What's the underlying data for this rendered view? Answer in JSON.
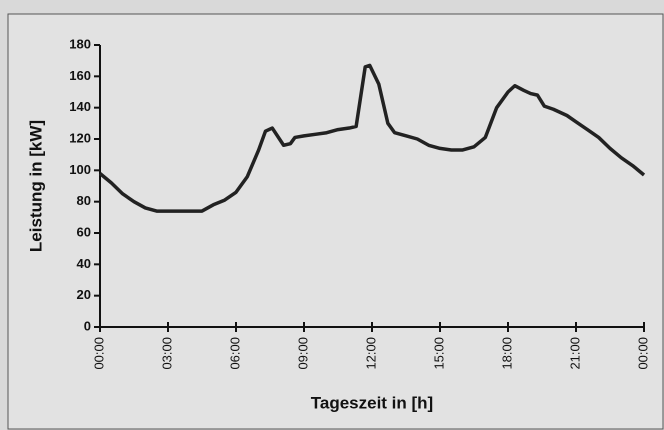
{
  "chart_data": {
    "type": "line",
    "xlabel": "Tageszeit in [h]",
    "ylabel": "Leistung in [kW]",
    "x": [
      0,
      0.5,
      1,
      1.5,
      2,
      2.5,
      3,
      3.5,
      4,
      4.5,
      5,
      5.5,
      6,
      6.5,
      7,
      7.3,
      7.6,
      8.1,
      8.4,
      8.6,
      9,
      9.5,
      10,
      10.5,
      11,
      11.3,
      11.7,
      11.9,
      12.3,
      12.7,
      13,
      13.5,
      14,
      14.5,
      15,
      15.5,
      16,
      16.5,
      17,
      17.5,
      18,
      18.3,
      18.7,
      19,
      19.3,
      19.6,
      20,
      20.6,
      21,
      21.5,
      22,
      22.5,
      23,
      23.5,
      24
    ],
    "values": [
      98,
      92,
      85,
      80,
      76,
      74,
      74,
      74,
      74,
      74,
      78,
      81,
      86,
      96,
      113,
      125,
      127,
      116,
      117,
      121,
      122,
      123,
      124,
      126,
      127,
      128,
      166,
      167,
      155,
      130,
      124,
      122,
      120,
      116,
      114,
      113,
      113,
      115,
      121,
      140,
      150,
      154,
      151,
      149,
      148,
      141,
      139,
      135,
      131,
      126,
      121,
      114,
      108,
      103,
      97
    ],
    "color": "#222222",
    "xlim": [
      0,
      24
    ],
    "xticks": [
      {
        "value": 0,
        "label": "00:00"
      },
      {
        "value": 3,
        "label": "03:00"
      },
      {
        "value": 6,
        "label": "06:00"
      },
      {
        "value": 9,
        "label": "09:00"
      },
      {
        "value": 12,
        "label": "12:00"
      },
      {
        "value": 15,
        "label": "15:00"
      },
      {
        "value": 18,
        "label": "18:00"
      },
      {
        "value": 21,
        "label": "21:00"
      },
      {
        "value": 24,
        "label": "00:00"
      }
    ],
    "ylim": [
      0,
      180
    ],
    "yticks": [
      0,
      20,
      40,
      60,
      80,
      100,
      120,
      140,
      160,
      180
    ]
  }
}
